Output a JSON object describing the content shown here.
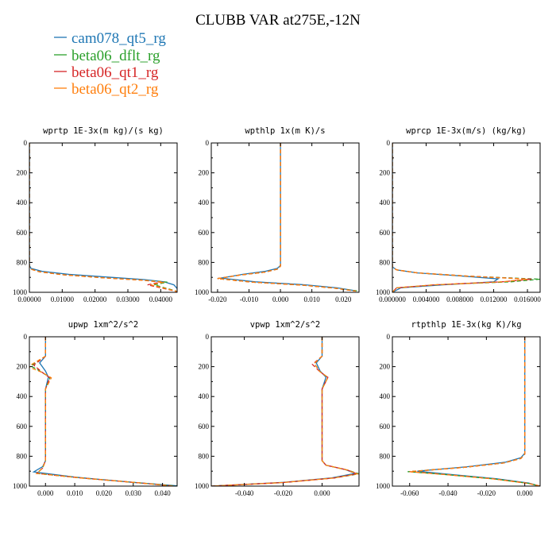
{
  "figure": {
    "title": "CLUBB VAR at275E,-12N"
  },
  "legend": [
    {
      "name": "cam078_qt5_rg",
      "color": "#1f77b4"
    },
    {
      "name": "beta06_dflt_rg",
      "color": "#2ca02c"
    },
    {
      "name": "beta06_qt1_rg",
      "color": "#d62728"
    },
    {
      "name": "beta06_qt2_rg",
      "color": "#ff7f0e"
    }
  ],
  "chart_data": [
    {
      "type": "line",
      "title": "wprtp  1E-3x(m kg)/(s kg)",
      "xlim": [
        0,
        0.045
      ],
      "ylim": [
        1000,
        0
      ],
      "xticks": [
        0,
        0.01,
        0.02,
        0.03,
        0.04
      ],
      "xtick_labels": [
        "0.00000",
        "0.01000",
        "0.02000",
        "0.03000",
        "0.04000"
      ],
      "yticks": [
        0,
        200,
        400,
        600,
        800,
        1000
      ],
      "ytick_labels": [
        "0",
        "200",
        "400",
        "600",
        "800",
        "1000"
      ],
      "series": [
        {
          "name": "cam078_qt5_rg",
          "color": "#1f77b4",
          "dash": false,
          "x": [
            0,
            0,
            0.0005,
            0.004,
            0.012,
            0.025,
            0.035,
            0.041,
            0.044,
            0.046
          ],
          "y": [
            0,
            820,
            840,
            860,
            880,
            900,
            915,
            930,
            950,
            1000
          ]
        },
        {
          "name": "beta06_dflt_rg",
          "color": "#2ca02c",
          "dash": true,
          "x": [
            0,
            0,
            0.0005,
            0.003,
            0.01,
            0.022,
            0.034,
            0.042,
            0.038,
            0.046
          ],
          "y": [
            0,
            830,
            845,
            862,
            882,
            902,
            918,
            932,
            950,
            1000
          ]
        },
        {
          "name": "beta06_qt1_rg",
          "color": "#d62728",
          "dash": true,
          "x": [
            0,
            0,
            0.0005,
            0.003,
            0.01,
            0.022,
            0.034,
            0.04,
            0.036,
            0.046
          ],
          "y": [
            0,
            830,
            845,
            862,
            882,
            902,
            918,
            932,
            950,
            1000
          ]
        },
        {
          "name": "beta06_qt2_rg",
          "color": "#ff7f0e",
          "dash": true,
          "x": [
            0,
            0,
            0.0005,
            0.003,
            0.01,
            0.022,
            0.034,
            0.041,
            0.037,
            0.046
          ],
          "y": [
            0,
            830,
            845,
            862,
            882,
            902,
            918,
            932,
            950,
            1000
          ]
        }
      ]
    },
    {
      "type": "line",
      "title": "wpthlp  1x(m K)/s",
      "xlim": [
        -0.022,
        0.025
      ],
      "ylim": [
        1000,
        0
      ],
      "xticks": [
        -0.02,
        -0.01,
        0,
        0.01,
        0.02
      ],
      "xtick_labels": [
        "-0.020",
        "-0.010",
        "0.000",
        "0.010",
        "0.020"
      ],
      "yticks": [
        0,
        200,
        400,
        600,
        800,
        1000
      ],
      "ytick_labels": [
        "0",
        "200",
        "400",
        "600",
        "800",
        "1000"
      ],
      "series": [
        {
          "name": "cam078_qt5_rg",
          "color": "#1f77b4",
          "dash": false,
          "x": [
            0,
            0,
            -0.001,
            -0.005,
            -0.012,
            -0.019,
            -0.008,
            0.008,
            0.018,
            0.024
          ],
          "y": [
            0,
            820,
            840,
            860,
            880,
            905,
            930,
            950,
            970,
            990
          ]
        },
        {
          "name": "beta06_dflt_rg",
          "color": "#2ca02c",
          "dash": true,
          "x": [
            0,
            0,
            -0.001,
            -0.005,
            -0.013,
            -0.02,
            -0.009,
            0.007,
            0.017,
            0.025
          ],
          "y": [
            0,
            825,
            845,
            865,
            885,
            908,
            932,
            952,
            972,
            992
          ]
        },
        {
          "name": "beta06_qt1_rg",
          "color": "#d62728",
          "dash": true,
          "x": [
            0,
            0,
            -0.001,
            -0.005,
            -0.013,
            -0.02,
            -0.009,
            0.007,
            0.017,
            0.024
          ],
          "y": [
            0,
            825,
            845,
            865,
            885,
            908,
            932,
            952,
            972,
            992
          ]
        },
        {
          "name": "beta06_qt2_rg",
          "color": "#ff7f0e",
          "dash": true,
          "x": [
            0,
            0,
            -0.001,
            -0.005,
            -0.013,
            -0.02,
            -0.009,
            0.007,
            0.017,
            0.024
          ],
          "y": [
            0,
            825,
            845,
            865,
            885,
            908,
            932,
            952,
            972,
            992
          ]
        }
      ]
    },
    {
      "type": "line",
      "title": "wprcp  1E-3x(m/s) (kg/kg)",
      "xlim": [
        0,
        0.0175
      ],
      "ylim": [
        1000,
        0
      ],
      "xticks": [
        0,
        0.004,
        0.008,
        0.012,
        0.016
      ],
      "xtick_labels": [
        "0.000000",
        "0.004000",
        "0.008000",
        "0.012000",
        "0.016000"
      ],
      "yticks": [
        0,
        200,
        400,
        600,
        800,
        1000
      ],
      "ytick_labels": [
        "0",
        "200",
        "400",
        "600",
        "800",
        "1000"
      ],
      "series": [
        {
          "name": "cam078_qt5_rg",
          "color": "#1f77b4",
          "dash": false,
          "x": [
            0,
            0,
            0.0005,
            0.003,
            0.008,
            0.0125,
            0.012,
            0.006,
            0.001,
            0
          ],
          "y": [
            0,
            830,
            850,
            870,
            890,
            910,
            930,
            950,
            970,
            1000
          ]
        },
        {
          "name": "beta06_dflt_rg",
          "color": "#2ca02c",
          "dash": true,
          "x": [
            0,
            0,
            0.0005,
            0.003,
            0.009,
            0.0175,
            0.014,
            0.005,
            0.0005,
            0
          ],
          "y": [
            0,
            830,
            850,
            870,
            892,
            912,
            930,
            950,
            970,
            1000
          ]
        },
        {
          "name": "beta06_qt1_rg",
          "color": "#d62728",
          "dash": true,
          "x": [
            0,
            0,
            0.0005,
            0.003,
            0.009,
            0.0165,
            0.013,
            0.005,
            0.0005,
            0
          ],
          "y": [
            0,
            830,
            850,
            870,
            892,
            912,
            930,
            950,
            970,
            1000
          ]
        },
        {
          "name": "beta06_qt2_rg",
          "color": "#ff7f0e",
          "dash": true,
          "x": [
            0,
            0,
            0.0005,
            0.003,
            0.009,
            0.016,
            0.013,
            0.005,
            0.0005,
            0
          ],
          "y": [
            0,
            830,
            850,
            870,
            892,
            912,
            930,
            950,
            970,
            1000
          ]
        }
      ]
    },
    {
      "type": "line",
      "title": "upwp  1xm^2/s^2",
      "xlim": [
        -0.0055,
        0.045
      ],
      "ylim": [
        1000,
        0
      ],
      "xticks": [
        0,
        0.01,
        0.02,
        0.03,
        0.04
      ],
      "xtick_labels": [
        "0.000",
        "0.010",
        "0.020",
        "0.030",
        "0.040"
      ],
      "yticks": [
        0,
        200,
        400,
        600,
        800,
        1000
      ],
      "ytick_labels": [
        "0",
        "200",
        "400",
        "600",
        "800",
        "1000"
      ],
      "series": [
        {
          "name": "cam078_qt5_rg",
          "color": "#1f77b4",
          "dash": false,
          "x": [
            0,
            0,
            -0.002,
            0,
            0.001,
            0,
            0,
            -0.001,
            -0.004,
            0.01,
            0.03,
            0.046
          ],
          "y": [
            0,
            130,
            175,
            230,
            270,
            350,
            830,
            870,
            905,
            940,
            975,
            1000
          ]
        },
        {
          "name": "beta06_dflt_rg",
          "color": "#2ca02c",
          "dash": true,
          "x": [
            0,
            0,
            -0.005,
            -0.001,
            0.0015,
            0,
            0,
            -0.001,
            -0.003,
            0.012,
            0.032,
            0.045
          ],
          "y": [
            0,
            130,
            195,
            240,
            275,
            350,
            830,
            880,
            915,
            945,
            978,
            1000
          ]
        },
        {
          "name": "beta06_qt1_rg",
          "color": "#d62728",
          "dash": true,
          "x": [
            0,
            0,
            -0.004,
            -0.001,
            0.0015,
            0,
            0,
            -0.001,
            -0.003,
            0.012,
            0.032,
            0.044
          ],
          "y": [
            0,
            130,
            190,
            240,
            275,
            350,
            830,
            880,
            915,
            945,
            978,
            1000
          ]
        },
        {
          "name": "beta06_qt2_rg",
          "color": "#ff7f0e",
          "dash": true,
          "x": [
            0,
            0,
            -0.006,
            -0.001,
            0.002,
            0,
            0,
            -0.001,
            -0.003,
            0.012,
            0.032,
            0.044
          ],
          "y": [
            0,
            130,
            200,
            240,
            275,
            350,
            830,
            880,
            915,
            945,
            978,
            1000
          ]
        }
      ]
    },
    {
      "type": "line",
      "title": "vpwp  1xm^2/s^2",
      "xlim": [
        -0.057,
        0.019
      ],
      "ylim": [
        1000,
        0
      ],
      "xticks": [
        -0.04,
        -0.02,
        0
      ],
      "xtick_labels": [
        "-0.040",
        "-0.020",
        "0.000"
      ],
      "yticks": [
        0,
        200,
        400,
        600,
        800,
        1000
      ],
      "ytick_labels": [
        "0",
        "200",
        "400",
        "600",
        "800",
        "1000"
      ],
      "series": [
        {
          "name": "cam078_qt5_rg",
          "color": "#1f77b4",
          "dash": false,
          "x": [
            0,
            0,
            -0.003,
            -0.001,
            0.002,
            0,
            0,
            0.002,
            0.012,
            0.017,
            0.005,
            -0.02,
            -0.057
          ],
          "y": [
            0,
            130,
            175,
            230,
            270,
            350,
            830,
            860,
            890,
            915,
            945,
            975,
            1000
          ]
        },
        {
          "name": "beta06_dflt_rg",
          "color": "#2ca02c",
          "dash": true,
          "x": [
            0,
            0,
            -0.004,
            -0.001,
            0.003,
            0,
            0,
            0.002,
            0.013,
            0.019,
            0.006,
            -0.02,
            -0.057
          ],
          "y": [
            0,
            130,
            180,
            235,
            272,
            350,
            830,
            860,
            892,
            918,
            946,
            976,
            1000
          ]
        },
        {
          "name": "beta06_qt1_rg",
          "color": "#d62728",
          "dash": true,
          "x": [
            0,
            0,
            -0.005,
            -0.001,
            0.003,
            0,
            0,
            0.002,
            0.013,
            0.018,
            0.006,
            -0.02,
            -0.057
          ],
          "y": [
            0,
            130,
            185,
            235,
            272,
            350,
            830,
            860,
            892,
            918,
            946,
            976,
            1000
          ]
        },
        {
          "name": "beta06_qt2_rg",
          "color": "#ff7f0e",
          "dash": true,
          "x": [
            0,
            0,
            -0.004,
            -0.001,
            0.003,
            0,
            0,
            0.002,
            0.013,
            0.018,
            0.006,
            -0.02,
            -0.057
          ],
          "y": [
            0,
            130,
            180,
            235,
            272,
            350,
            830,
            860,
            892,
            918,
            946,
            976,
            1000
          ]
        }
      ]
    },
    {
      "type": "line",
      "title": "rtpthlp  1E-3x(kg K)/kg",
      "xlim": [
        -0.069,
        0.008
      ],
      "ylim": [
        1000,
        0
      ],
      "xticks": [
        -0.06,
        -0.04,
        -0.02,
        0
      ],
      "xtick_labels": [
        "-0.060",
        "-0.040",
        "-0.020",
        "0.000"
      ],
      "yticks": [
        0,
        200,
        400,
        600,
        800,
        1000
      ],
      "ytick_labels": [
        "0",
        "200",
        "400",
        "600",
        "800",
        "1000"
      ],
      "series": [
        {
          "name": "cam078_qt5_rg",
          "color": "#1f77b4",
          "dash": false,
          "x": [
            0,
            0,
            -0.002,
            -0.01,
            -0.03,
            -0.056,
            -0.04,
            -0.015,
            0.002,
            0.008
          ],
          "y": [
            0,
            780,
            810,
            840,
            870,
            900,
            920,
            950,
            980,
            1000
          ]
        },
        {
          "name": "beta06_dflt_rg",
          "color": "#2ca02c",
          "dash": true,
          "x": [
            0,
            0,
            -0.002,
            -0.011,
            -0.032,
            -0.061,
            -0.042,
            -0.016,
            0.002,
            0.008
          ],
          "y": [
            0,
            785,
            815,
            845,
            875,
            903,
            922,
            952,
            982,
            1000
          ]
        },
        {
          "name": "beta06_qt1_rg",
          "color": "#d62728",
          "dash": true,
          "x": [
            0,
            0,
            -0.002,
            -0.011,
            -0.032,
            -0.06,
            -0.042,
            -0.016,
            0.002,
            0.008
          ],
          "y": [
            0,
            785,
            815,
            845,
            875,
            903,
            922,
            952,
            982,
            1000
          ]
        },
        {
          "name": "beta06_qt2_rg",
          "color": "#ff7f0e",
          "dash": true,
          "x": [
            0,
            0,
            -0.002,
            -0.011,
            -0.032,
            -0.06,
            -0.042,
            -0.016,
            0.002,
            0.008
          ],
          "y": [
            0,
            785,
            815,
            845,
            875,
            903,
            922,
            952,
            982,
            1000
          ]
        }
      ]
    }
  ]
}
